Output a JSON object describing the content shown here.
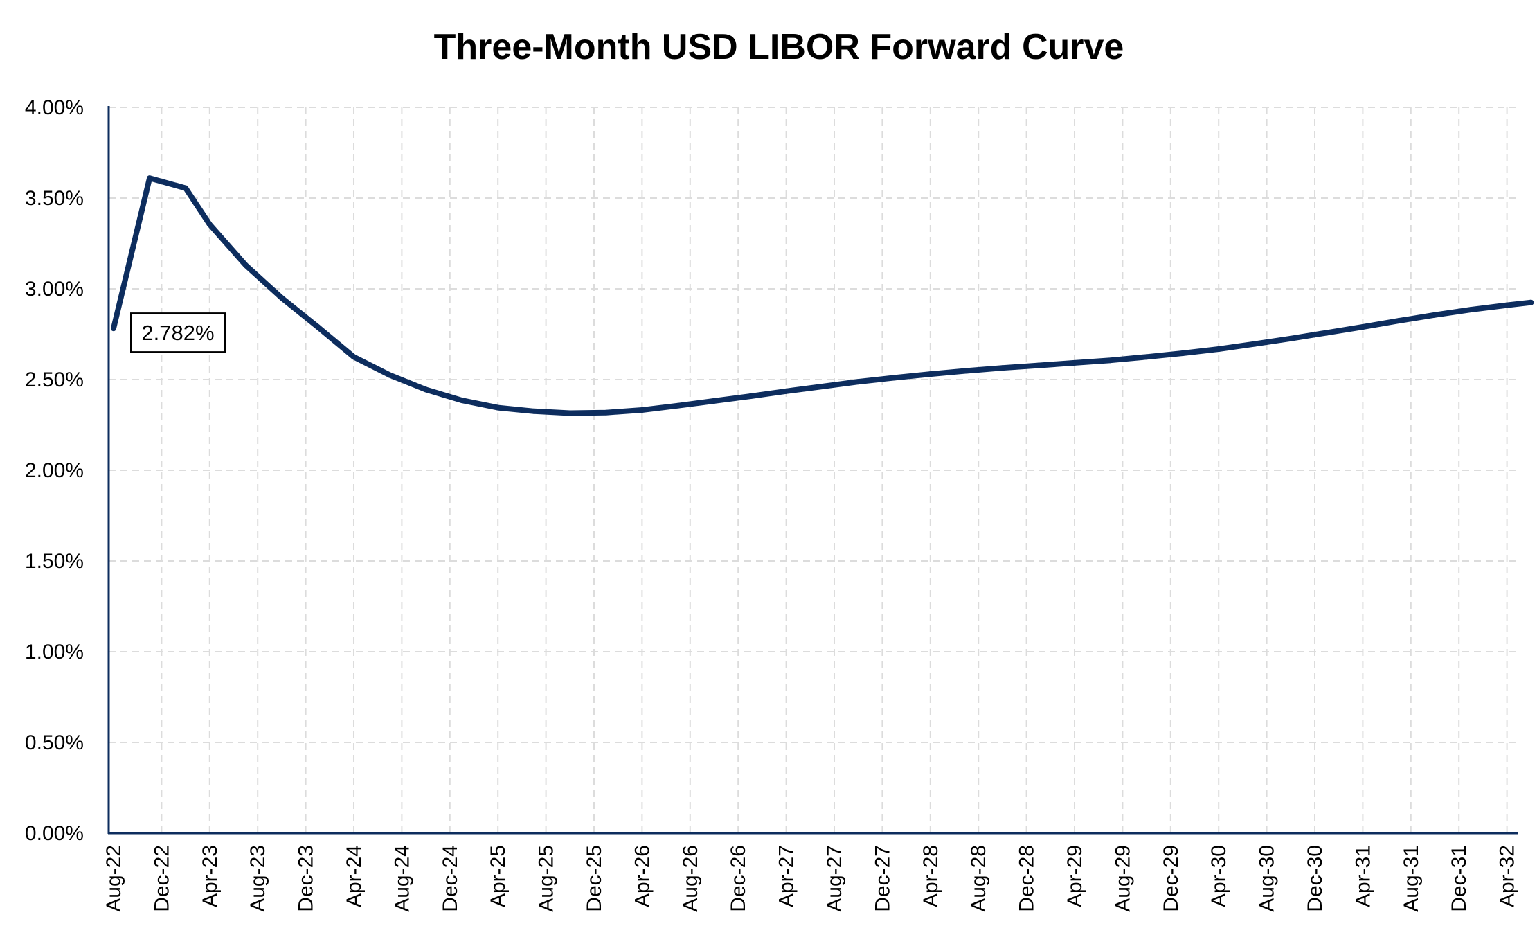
{
  "chart_data": {
    "type": "line",
    "title": "Three-Month USD LIBOR Forward Curve",
    "xlabel": "",
    "ylabel": "",
    "x_tick_labels": [
      "Aug-22",
      "Dec-22",
      "Apr-23",
      "Aug-23",
      "Dec-23",
      "Apr-24",
      "Aug-24",
      "Dec-24",
      "Apr-25",
      "Aug-25",
      "Dec-25",
      "Apr-26",
      "Aug-26",
      "Dec-26",
      "Apr-27",
      "Aug-27",
      "Dec-27",
      "Apr-28",
      "Aug-28",
      "Dec-28",
      "Apr-29",
      "Aug-29",
      "Dec-29",
      "Apr-30",
      "Aug-30",
      "Dec-30",
      "Apr-31",
      "Aug-31",
      "Dec-31",
      "Apr-32"
    ],
    "y_tick_labels": [
      "0.00%",
      "0.50%",
      "1.00%",
      "1.50%",
      "2.00%",
      "2.50%",
      "3.00%",
      "3.50%",
      "4.00%"
    ],
    "ylim": [
      0,
      4.0
    ],
    "y_unit": "%",
    "grid": true,
    "legend": "none",
    "line_color": "#0d2d5e",
    "series": [
      {
        "x": [
          "Aug-22",
          "Nov-22",
          "Feb-23",
          "Apr-23",
          "Jul-23",
          "Oct-23",
          "Jan-24",
          "Apr-24",
          "Jul-24",
          "Oct-24",
          "Jan-25",
          "Apr-25",
          "Jul-25",
          "Oct-25",
          "Jan-26",
          "Apr-26",
          "Jul-26",
          "Oct-26",
          "Jan-27",
          "Apr-27",
          "Jul-27",
          "Oct-27",
          "Jan-28",
          "Apr-28",
          "Jul-28",
          "Oct-28",
          "Jan-29",
          "Apr-29",
          "Jul-29",
          "Oct-29",
          "Jan-30",
          "Apr-30",
          "Jul-30",
          "Oct-30",
          "Jan-31",
          "Apr-31",
          "Jul-31",
          "Oct-31",
          "Jan-32",
          "Apr-32",
          "Jun-32"
        ],
        "values": [
          2.782,
          3.61,
          3.555,
          3.355,
          3.13,
          2.95,
          2.79,
          2.625,
          2.525,
          2.445,
          2.385,
          2.345,
          2.325,
          2.315,
          2.318,
          2.332,
          2.356,
          2.382,
          2.408,
          2.436,
          2.462,
          2.488,
          2.51,
          2.53,
          2.548,
          2.564,
          2.578,
          2.592,
          2.606,
          2.625,
          2.645,
          2.668,
          2.696,
          2.726,
          2.758,
          2.79,
          2.824,
          2.856,
          2.885,
          2.91,
          2.925
        ]
      }
    ],
    "annotations": [
      {
        "text": "2.782%",
        "x": "Aug-22",
        "y": 2.782
      }
    ]
  }
}
